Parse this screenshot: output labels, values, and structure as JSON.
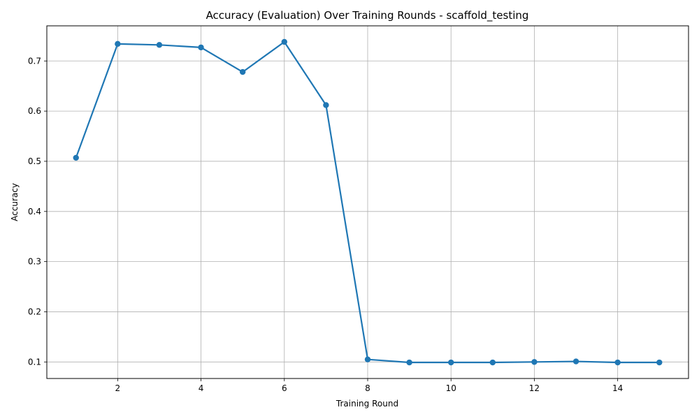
{
  "chart_data": {
    "type": "line",
    "title": "Accuracy (Evaluation) Over Training Rounds - scaffold_testing",
    "xlabel": "Training Round",
    "ylabel": "Accuracy",
    "x": [
      1,
      2,
      3,
      4,
      5,
      6,
      7,
      8,
      9,
      10,
      11,
      12,
      13,
      14,
      15
    ],
    "series": [
      {
        "values": [
          0.507,
          0.734,
          0.732,
          0.727,
          0.678,
          0.738,
          0.612,
          0.105,
          0.099,
          0.099,
          0.099,
          0.1,
          0.101,
          0.099,
          0.099
        ],
        "color": "#1f77b4",
        "marker": "circle"
      }
    ],
    "xlim": [
      0.3,
      15.7
    ],
    "ylim": [
      0.067,
      0.77
    ],
    "x_ticks": [
      2,
      4,
      6,
      8,
      10,
      12,
      14
    ],
    "y_ticks": [
      0.1,
      0.2,
      0.3,
      0.4,
      0.5,
      0.6,
      0.7
    ],
    "x_tick_labels": [
      "2",
      "4",
      "6",
      "8",
      "10",
      "12",
      "14"
    ],
    "y_tick_labels": [
      "0.1",
      "0.2",
      "0.3",
      "0.4",
      "0.5",
      "0.6",
      "0.7"
    ],
    "grid": true,
    "grid_color": "#b0b0b0",
    "legend": false
  }
}
